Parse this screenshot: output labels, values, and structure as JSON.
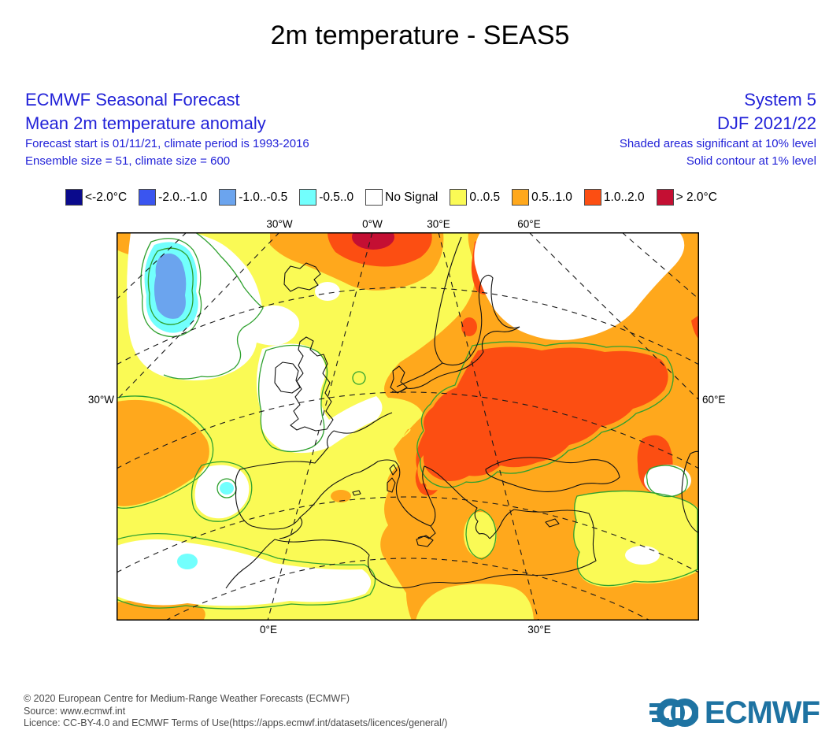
{
  "title": "2m temperature - SEAS5",
  "header_left": {
    "line1": "ECMWF Seasonal Forecast",
    "line2": "Mean 2m temperature anomaly",
    "line3": "Forecast start is 01/11/21, climate period is 1993-2016",
    "line4": "Ensemble size = 51, climate size = 600"
  },
  "header_right": {
    "line1": "System 5",
    "line2": "DJF 2021/22",
    "line3": "Shaded areas significant at 10% level",
    "line4": "Solid contour at 1% level"
  },
  "legend": {
    "items": [
      {
        "label": "<-2.0°C",
        "color": "#0A0A8C"
      },
      {
        "label": "-2.0..-1.0",
        "color": "#3A55F0"
      },
      {
        "label": "-1.0..-0.5",
        "color": "#6BA4EE"
      },
      {
        "label": "-0.5..0",
        "color": "#72FFFD"
      },
      {
        "label": "No Signal",
        "color": "#FFFFFF"
      },
      {
        "label": "0..0.5",
        "color": "#FAFA55"
      },
      {
        "label": "0.5..1.0",
        "color": "#FFA81C"
      },
      {
        "label": "1.0..2.0",
        "color": "#FC4E12"
      },
      {
        "label": "> 2.0°C",
        "color": "#C40F33"
      }
    ]
  },
  "map": {
    "top_labels": [
      "30°W",
      "0°W",
      "30°E",
      "60°E"
    ],
    "left_label": "30°W",
    "right_label": "60°E",
    "bottom_labels": [
      "0°E",
      "30°E"
    ],
    "contour_color": "#2FA12F",
    "coastline_color": "#111111"
  },
  "footer": {
    "line1": "© 2020 European Centre for Medium-Range Weather Forecasts (ECMWF)",
    "line2": "Source: www.ecmwf.int",
    "line3": "Licence: CC-BY-4.0 and ECMWF Terms of Use(https://apps.ecmwf.int/datasets/licences/general/)"
  },
  "logo": {
    "text": "ECMWF",
    "color": "#1E73A2"
  }
}
